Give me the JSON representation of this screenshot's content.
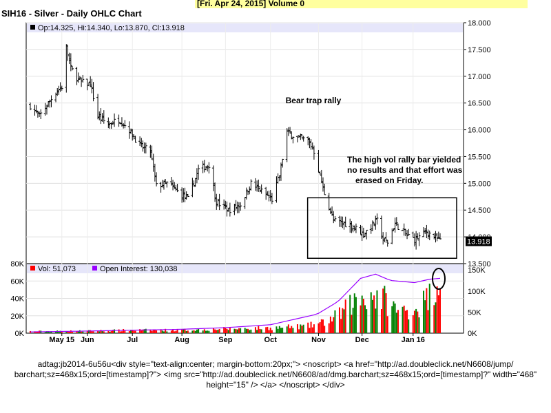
{
  "top_bar": {
    "date": "[Fri. Apr 24, 2015]",
    "volume": "Volume 0"
  },
  "title": "SIH16 - Silver - Daily OHLC Chart",
  "colors": {
    "price": "#000000",
    "vol_up": "#008000",
    "vol_down": "#ff0000",
    "oi": "#9900ff",
    "header": "#e6e6fa"
  },
  "footer_text": "adtag:jb2014-6u56u<div style=\"text-align:center; margin-bottom:20px;\"> <noscript> <a href=\"http://ad.doubleclick.net/N6608/jump/\nbarchart;sz=468x15;ord=[timestamp]?\"> <img src=\"http://ad.doubleclick.net/N6608/ad/dmg.barchart;sz=468x15;ord=[timestamp]?\" width=\"468\"\nheight=\"15\" /> </a> </noscript> </div>",
  "chart_data": {
    "type": "ohlc",
    "price_panel": {
      "header": "Op:14.325, Hi:14.340, Lo:13.870, Cl:13.918",
      "last_price_label": "13.918",
      "y_ticks": [
        "18.000",
        "17.500",
        "17.000",
        "16.500",
        "16.000",
        "15.500",
        "15.000",
        "14.500",
        "14.000",
        "13.500"
      ],
      "ylim": [
        13.5,
        18.0
      ],
      "annotations": [
        {
          "text": "Bear trap rally"
        },
        {
          "text": "The high vol rally bar yielded\nno results and that effort was\nerased on Friday."
        }
      ],
      "highlight_box": {
        "x_range": [
          "2015-11-03",
          "2016-01-22"
        ],
        "y_range": [
          13.6,
          14.73
        ]
      }
    },
    "volume_panel": {
      "vol_label": "Vol: 51,073",
      "oi_label": "Open Interest: 130,038",
      "left_ticks": [
        "80K",
        "60K",
        "40K",
        "20K",
        "0K"
      ],
      "right_ticks": [
        "150K",
        "100K",
        "50K",
        "0K"
      ],
      "vol_ylim": [
        0,
        80000
      ],
      "oi_ylim": [
        0,
        165000
      ]
    },
    "x_ticks": [
      "May 15",
      "Jun",
      "Jul",
      "Aug",
      "Sep",
      "Oct",
      "Nov",
      "Dec",
      "Jan 16"
    ],
    "x_range": [
      "2015-04-24",
      "2016-01-22"
    ],
    "price_path": [
      [
        "2015-04-24",
        16.45
      ],
      [
        "2015-04-30",
        16.25
      ],
      [
        "2015-05-06",
        16.5
      ],
      [
        "2015-05-11",
        16.7
      ],
      [
        "2015-05-15",
        16.8
      ],
      [
        "2015-05-18",
        17.55
      ],
      [
        "2015-05-21",
        17.15
      ],
      [
        "2015-05-27",
        16.9
      ],
      [
        "2015-06-03",
        16.85
      ],
      [
        "2015-06-08",
        16.25
      ],
      [
        "2015-06-15",
        16.1
      ],
      [
        "2015-06-22",
        16.2
      ],
      [
        "2015-06-29",
        16.0
      ],
      [
        "2015-07-06",
        15.7
      ],
      [
        "2015-07-13",
        15.6
      ],
      [
        "2015-07-17",
        14.95
      ],
      [
        "2015-07-24",
        15.0
      ],
      [
        "2015-07-31",
        14.85
      ],
      [
        "2015-08-07",
        14.7
      ],
      [
        "2015-08-14",
        15.25
      ],
      [
        "2015-08-21",
        15.35
      ],
      [
        "2015-08-26",
        14.65
      ],
      [
        "2015-09-03",
        14.5
      ],
      [
        "2015-09-11",
        14.6
      ],
      [
        "2015-09-18",
        15.0
      ],
      [
        "2015-09-25",
        14.85
      ],
      [
        "2015-10-02",
        14.7
      ],
      [
        "2015-10-07",
        15.15
      ],
      [
        "2015-10-12",
        15.95
      ],
      [
        "2015-10-19",
        15.85
      ],
      [
        "2015-10-26",
        15.8
      ],
      [
        "2015-10-30",
        15.6
      ],
      [
        "2015-11-05",
        14.9
      ],
      [
        "2015-11-12",
        14.3
      ],
      [
        "2015-11-19",
        14.25
      ],
      [
        "2015-11-25",
        14.2
      ],
      [
        "2015-12-02",
        14.05
      ],
      [
        "2015-12-07",
        14.2
      ],
      [
        "2015-12-11",
        14.3
      ],
      [
        "2015-12-15",
        13.95
      ],
      [
        "2015-12-18",
        13.9
      ],
      [
        "2015-12-23",
        14.25
      ],
      [
        "2015-12-30",
        14.05
      ],
      [
        "2016-01-05",
        13.95
      ],
      [
        "2016-01-08",
        14.0
      ],
      [
        "2016-01-13",
        14.1
      ],
      [
        "2016-01-22",
        13.92
      ]
    ],
    "volume_path": [
      [
        "2015-04-24",
        2000
      ],
      [
        "2015-06-01",
        2500
      ],
      [
        "2015-07-01",
        3500
      ],
      [
        "2015-08-01",
        3500
      ],
      [
        "2015-09-01",
        5000
      ],
      [
        "2015-10-01",
        6000
      ],
      [
        "2015-10-25",
        8000
      ],
      [
        "2015-11-05",
        12000
      ],
      [
        "2015-11-15",
        20000
      ],
      [
        "2015-11-25",
        35000
      ],
      [
        "2015-12-05",
        45000
      ],
      [
        "2015-12-15",
        40000
      ],
      [
        "2015-12-25",
        25000
      ],
      [
        "2016-01-05",
        28000
      ],
      [
        "2016-01-14",
        40000
      ],
      [
        "2016-01-21",
        65000
      ],
      [
        "2016-01-22",
        51073
      ]
    ],
    "oi_path": [
      [
        "2015-04-24",
        3000
      ],
      [
        "2015-06-01",
        5000
      ],
      [
        "2015-07-01",
        7000
      ],
      [
        "2015-08-01",
        9000
      ],
      [
        "2015-09-01",
        13000
      ],
      [
        "2015-10-01",
        20000
      ],
      [
        "2015-11-01",
        45000
      ],
      [
        "2015-11-15",
        75000
      ],
      [
        "2015-11-30",
        130000
      ],
      [
        "2015-12-10",
        140000
      ],
      [
        "2015-12-20",
        125000
      ],
      [
        "2016-01-05",
        120000
      ],
      [
        "2016-01-15",
        128000
      ],
      [
        "2016-01-22",
        130038
      ]
    ]
  }
}
